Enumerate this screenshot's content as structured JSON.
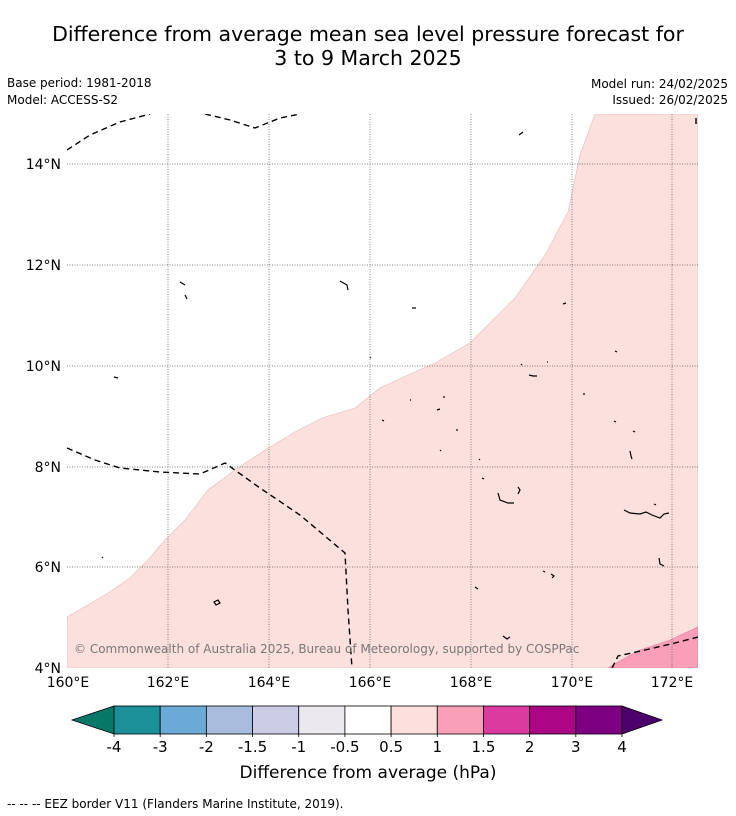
{
  "title_line1": "Difference from average mean sea level pressure forecast for",
  "title_line2": "3 to 9 March 2025",
  "base_period": "Base period: 1981-2018",
  "model": "Model: ACCESS-S2",
  "model_run": "Model run: 24/02/2025",
  "issued": "Issued: 26/02/2025",
  "copyright": "© Commonwealth of Australia 2025, Bureau of Meteorology, supported by COSPPac",
  "x_ticks": [
    "160°E",
    "162°E",
    "164°E",
    "166°E",
    "168°E",
    "170°E",
    "172°E"
  ],
  "y_ticks": [
    "14°N",
    "12°N",
    "10°N",
    "8°N",
    "6°N",
    "4°N"
  ],
  "colorbar": {
    "label": "Difference from average (hPa)",
    "ticks": [
      "-4",
      "-3",
      "-2",
      "-1.5",
      "-1",
      "-0.5",
      "0.5",
      "1",
      "1.5",
      "2",
      "3",
      "4"
    ],
    "colors": [
      "#1c9098",
      "#6aaad4",
      "#a7bbdc",
      "#cccce6",
      "#ebe8ee",
      "#ffffff",
      "#fde0dd",
      "#f99fb8",
      "#dc3a9e",
      "#ab0685",
      "#7c0081"
    ],
    "under_color": "#077867",
    "over_color": "#4b006b"
  },
  "legend_text": "-- -- -- EEZ border V11 (Flanders Marine Institute, 2019).",
  "map": {
    "lon_range": [
      160,
      172.5
    ],
    "lat_range": [
      4,
      15
    ],
    "fill_colors": {
      "light_pink": "#fce0dd",
      "pink": "#f99fb8"
    }
  }
}
